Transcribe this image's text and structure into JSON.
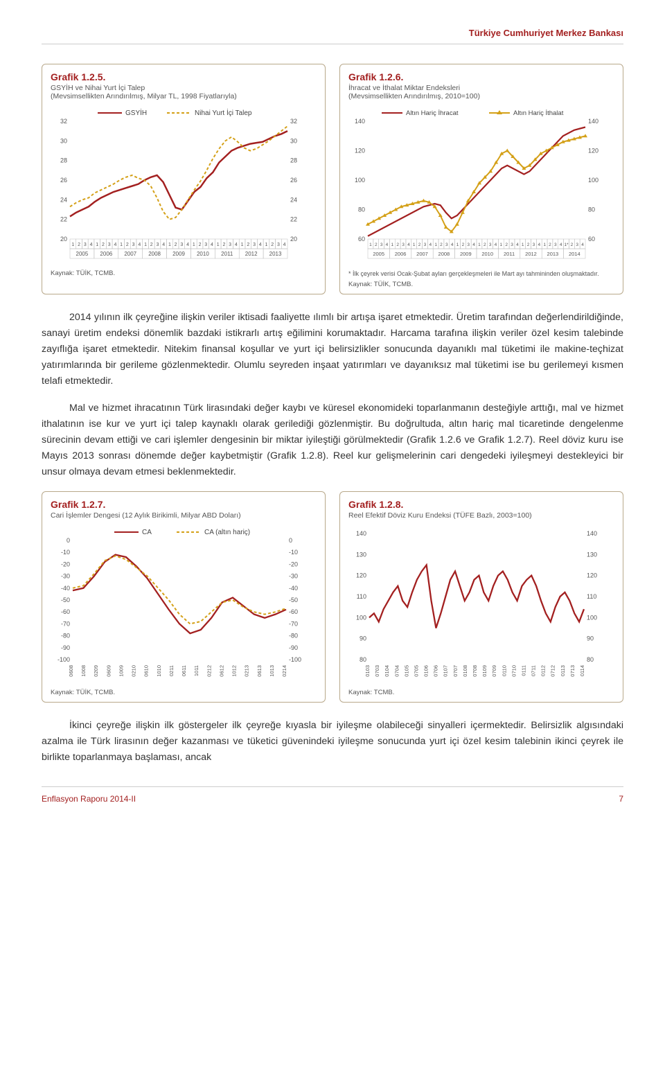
{
  "header": {
    "title": "Türkiye Cumhuriyet Merkez Bankası"
  },
  "chart125": {
    "title": "Grafik 1.2.5.",
    "subtitle": "GSYİH ve Nihai Yurt İçi Talep",
    "subtitle2": "(Mevsimsellikten Arındırılmış, Milyar TL, 1998 Fiyatlarıyla)",
    "type": "line",
    "legend": [
      "GSYİH",
      "Nihai Yurt İçi Talep"
    ],
    "colors": [
      "#a32020",
      "#d4a017"
    ],
    "dash": [
      "",
      "4,3"
    ],
    "ylim": [
      20,
      32
    ],
    "ytick_step": 2,
    "years": [
      "2005",
      "2006",
      "2007",
      "2008",
      "2009",
      "2010",
      "2011",
      "2012",
      "2013"
    ],
    "quarters_per_year": 4,
    "gsyih": [
      22.3,
      22.7,
      23.0,
      23.3,
      23.8,
      24.2,
      24.5,
      24.8,
      25.0,
      25.2,
      25.4,
      25.6,
      26.0,
      26.3,
      26.5,
      25.8,
      24.5,
      23.2,
      23.0,
      23.9,
      24.8,
      25.3,
      26.2,
      26.8,
      27.8,
      28.4,
      29.0,
      29.3,
      29.5,
      29.7,
      29.8,
      29.9,
      30.2,
      30.5,
      30.7,
      31.0
    ],
    "talep": [
      23.3,
      23.7,
      24.0,
      24.2,
      24.7,
      25.0,
      25.3,
      25.6,
      26.0,
      26.3,
      26.5,
      26.2,
      26.0,
      25.4,
      24.2,
      22.8,
      22.0,
      22.2,
      23.0,
      24.0,
      25.0,
      25.9,
      27.0,
      28.2,
      29.2,
      30.0,
      30.4,
      29.9,
      29.3,
      29.0,
      29.2,
      29.6,
      30.0,
      30.5,
      31.0,
      31.5
    ],
    "source": "Kaynak: TÜİK, TCMB.",
    "background_color": "#ffffff",
    "grid_color": "#d8d3c3"
  },
  "chart126": {
    "title": "Grafik 1.2.6.",
    "subtitle": "İhracat ve İthalat Miktar Endeksleri",
    "subtitle2": "(Mevsimsellikten Arındırılmış, 2010=100)",
    "type": "line",
    "legend": [
      "Altın Hariç İhracat",
      "Altın Hariç İthalat"
    ],
    "colors": [
      "#a32020",
      "#d4a017"
    ],
    "markers": [
      false,
      true
    ],
    "ylim": [
      60,
      140
    ],
    "ytick_step": 20,
    "years": [
      "2005",
      "2006",
      "2007",
      "2008",
      "2009",
      "2010",
      "2011",
      "2012",
      "2013",
      "2014"
    ],
    "quarters_per_year": 4,
    "ihracat": [
      62,
      64,
      66,
      68,
      70,
      72,
      74,
      76,
      78,
      80,
      82,
      83,
      84,
      83,
      78,
      74,
      76,
      80,
      84,
      88,
      92,
      96,
      100,
      104,
      108,
      110,
      108,
      106,
      104,
      106,
      110,
      114,
      118,
      122,
      126,
      130,
      132,
      134,
      135,
      136
    ],
    "ithalat": [
      70,
      72,
      74,
      76,
      78,
      80,
      82,
      83,
      84,
      85,
      86,
      85,
      82,
      76,
      68,
      65,
      70,
      78,
      86,
      92,
      98,
      102,
      106,
      112,
      118,
      120,
      116,
      112,
      108,
      110,
      114,
      118,
      120,
      122,
      124,
      126,
      127,
      128,
      129,
      130
    ],
    "footnote": "* İlk çeyrek verisi Ocak-Şubat ayları gerçekleşmeleri ile Mart ayı tahmininden oluşmaktadır.",
    "source": "Kaynak: TÜİK, TCMB.",
    "background_color": "#ffffff",
    "grid_color": "#d8d3c3"
  },
  "para1": "2014 yılının ilk çeyreğine ilişkin veriler iktisadi faaliyette ılımlı bir artışa işaret etmektedir. Üretim tarafından değerlendirildiğinde, sanayi üretim endeksi dönemlik bazdaki istikrarlı artış eğilimini korumaktadır. Harcama tarafına ilişkin veriler özel kesim talebinde zayıflığa işaret etmektedir. Nitekim finansal koşullar ve yurt içi belirsizlikler sonucunda dayanıklı mal tüketimi ile makine-teçhizat yatırımlarında bir gerileme gözlenmektedir. Olumlu seyreden inşaat yatırımları ve dayanıksız mal tüketimi ise bu gerilemeyi kısmen telafi etmektedir.",
  "para2": "Mal ve hizmet ihracatının Türk lirasındaki değer kaybı ve küresel ekonomideki toparlanmanın desteğiyle arttığı, mal ve hizmet ithalatının ise kur ve yurt içi talep kaynaklı olarak gerilediği gözlenmiştir. Bu doğrultuda, altın hariç mal ticaretinde dengelenme sürecinin devam ettiği ve cari işlemler dengesinin bir miktar iyileştiği görülmektedir (Grafik 1.2.6 ve Grafik 1.2.7). Reel döviz kuru ise Mayıs 2013 sonrası dönemde değer kaybetmiştir (Grafik 1.2.8). Reel kur gelişmelerinin cari dengedeki iyileşmeyi destekleyici bir unsur olmaya devam etmesi beklenmektedir.",
  "chart127": {
    "title": "Grafik 1.2.7.",
    "subtitle": "Cari İşlemler Dengesi (12 Aylık Birikimli, Milyar ABD Doları)",
    "type": "line",
    "legend": [
      "CA",
      "CA (altın hariç)"
    ],
    "colors": [
      "#a32020",
      "#d4a017"
    ],
    "dash": [
      "",
      "4,3"
    ],
    "ylim": [
      -100,
      0
    ],
    "ytick_step": 10,
    "xlabels": [
      "0608",
      "1008",
      "0209",
      "0609",
      "1009",
      "0210",
      "0610",
      "1010",
      "0211",
      "0611",
      "1011",
      "0212",
      "0612",
      "1012",
      "0213",
      "0613",
      "1013",
      "0214"
    ],
    "ca": [
      -42,
      -40,
      -30,
      -18,
      -12,
      -14,
      -22,
      -32,
      -45,
      -58,
      -70,
      -78,
      -75,
      -65,
      -52,
      -48,
      -55,
      -62,
      -65,
      -62,
      -58
    ],
    "ca_altin": [
      -40,
      -38,
      -28,
      -17,
      -13,
      -16,
      -23,
      -30,
      -40,
      -50,
      -62,
      -70,
      -68,
      -60,
      -52,
      -50,
      -56,
      -60,
      -62,
      -60,
      -57
    ],
    "source": "Kaynak: TÜİK, TCMB.",
    "background_color": "#ffffff",
    "grid_color": "#d8d3c3"
  },
  "chart128": {
    "title": "Grafik 1.2.8.",
    "subtitle": "Reel Efektif Döviz Kuru Endeksi (TÜFE Bazlı, 2003=100)",
    "type": "line",
    "colors": [
      "#a32020"
    ],
    "ylim": [
      80,
      140
    ],
    "ytick_step": 10,
    "xlabels": [
      "0103",
      "0703",
      "0104",
      "0704",
      "0105",
      "0705",
      "0106",
      "0706",
      "0107",
      "0707",
      "0108",
      "0708",
      "0109",
      "0709",
      "0110",
      "0710",
      "0111",
      "0711",
      "0112",
      "0712",
      "0113",
      "0713",
      "0114"
    ],
    "reer": [
      100,
      102,
      98,
      104,
      108,
      112,
      115,
      108,
      105,
      112,
      118,
      122,
      125,
      108,
      95,
      102,
      110,
      118,
      122,
      115,
      108,
      112,
      118,
      120,
      112,
      108,
      115,
      120,
      122,
      118,
      112,
      108,
      115,
      118,
      120,
      115,
      108,
      102,
      98,
      105,
      110,
      112,
      108,
      102,
      98,
      104
    ],
    "source": "Kaynak: TCMB.",
    "background_color": "#ffffff",
    "grid_color": "#d8d3c3"
  },
  "para3": "İkinci çeyreğe ilişkin ilk göstergeler ilk çeyreğe kıyasla bir iyileşme olabileceği sinyalleri içermektedir. Belirsizlik algısındaki azalma ile Türk lirasının değer kazanması ve tüketici güvenindeki iyileşme sonucunda yurt içi özel kesim talebinin ikinci çeyrek ile birlikte toparlanmaya başlaması, ancak",
  "footer": {
    "report": "Enflasyon Raporu 2014-II",
    "page": "7"
  }
}
